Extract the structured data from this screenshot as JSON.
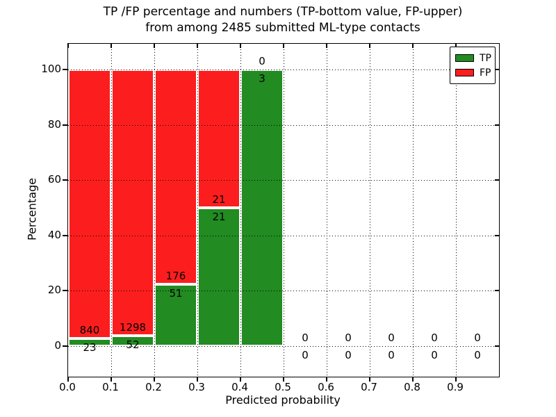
{
  "chart_data": {
    "type": "bar",
    "subtype": "stacked-percentage-histogram",
    "title_line1": "TP /FP percentage and numbers (TP-bottom value, FP-upper)",
    "title_line2": "from among 2485 submitted ML-type contacts",
    "total_contacts": 2485,
    "xlabel": "Predicted probability",
    "ylabel": "Percentage",
    "x_tick_values": [
      0.0,
      0.1,
      0.2,
      0.3,
      0.4,
      0.5,
      0.6,
      0.7,
      0.8,
      0.9
    ],
    "x_tick_labels": [
      "0.0",
      "0.1",
      "0.2",
      "0.3",
      "0.4",
      "0.5",
      "0.6",
      "0.7",
      "0.8",
      "0.9"
    ],
    "y_ticks": [
      0,
      20,
      40,
      60,
      80,
      100
    ],
    "xlim": [
      0.0,
      1.0
    ],
    "ylim": [
      0,
      100
    ],
    "grid": true,
    "grid_style": "dotted",
    "bin_width": 0.1,
    "bins": [
      {
        "range": [
          0.0,
          0.1
        ],
        "tp": 23,
        "fp": 840,
        "tp_percent": 2.67,
        "fp_percent": 97.33
      },
      {
        "range": [
          0.1,
          0.2
        ],
        "tp": 52,
        "fp": 1298,
        "tp_percent": 3.85,
        "fp_percent": 96.15
      },
      {
        "range": [
          0.2,
          0.3
        ],
        "tp": 51,
        "fp": 176,
        "tp_percent": 22.47,
        "fp_percent": 77.53
      },
      {
        "range": [
          0.3,
          0.4
        ],
        "tp": 21,
        "fp": 21,
        "tp_percent": 50.0,
        "fp_percent": 50.0
      },
      {
        "range": [
          0.4,
          0.5
        ],
        "tp": 3,
        "fp": 0,
        "tp_percent": 100.0,
        "fp_percent": 0.0
      },
      {
        "range": [
          0.5,
          0.6
        ],
        "tp": 0,
        "fp": 0,
        "tp_percent": 0,
        "fp_percent": 0
      },
      {
        "range": [
          0.6,
          0.7
        ],
        "tp": 0,
        "fp": 0,
        "tp_percent": 0,
        "fp_percent": 0
      },
      {
        "range": [
          0.7,
          0.8
        ],
        "tp": 0,
        "fp": 0,
        "tp_percent": 0,
        "fp_percent": 0
      },
      {
        "range": [
          0.8,
          0.9
        ],
        "tp": 0,
        "fp": 0,
        "tp_percent": 0,
        "fp_percent": 0
      },
      {
        "range": [
          0.9,
          1.0
        ],
        "tp": 0,
        "fp": 0,
        "tp_percent": 0,
        "fp_percent": 0
      }
    ],
    "legend": {
      "position": "upper right",
      "entries": [
        {
          "label": "TP",
          "color": "#228b22"
        },
        {
          "label": "FP",
          "color": "#fc1e1e"
        }
      ]
    },
    "colors": {
      "tp": "#228b22",
      "fp": "#fc1e1e",
      "grid": "#000000",
      "bar_edge": "#ffffff",
      "spine": "#000000",
      "background": "#ffffff"
    }
  }
}
